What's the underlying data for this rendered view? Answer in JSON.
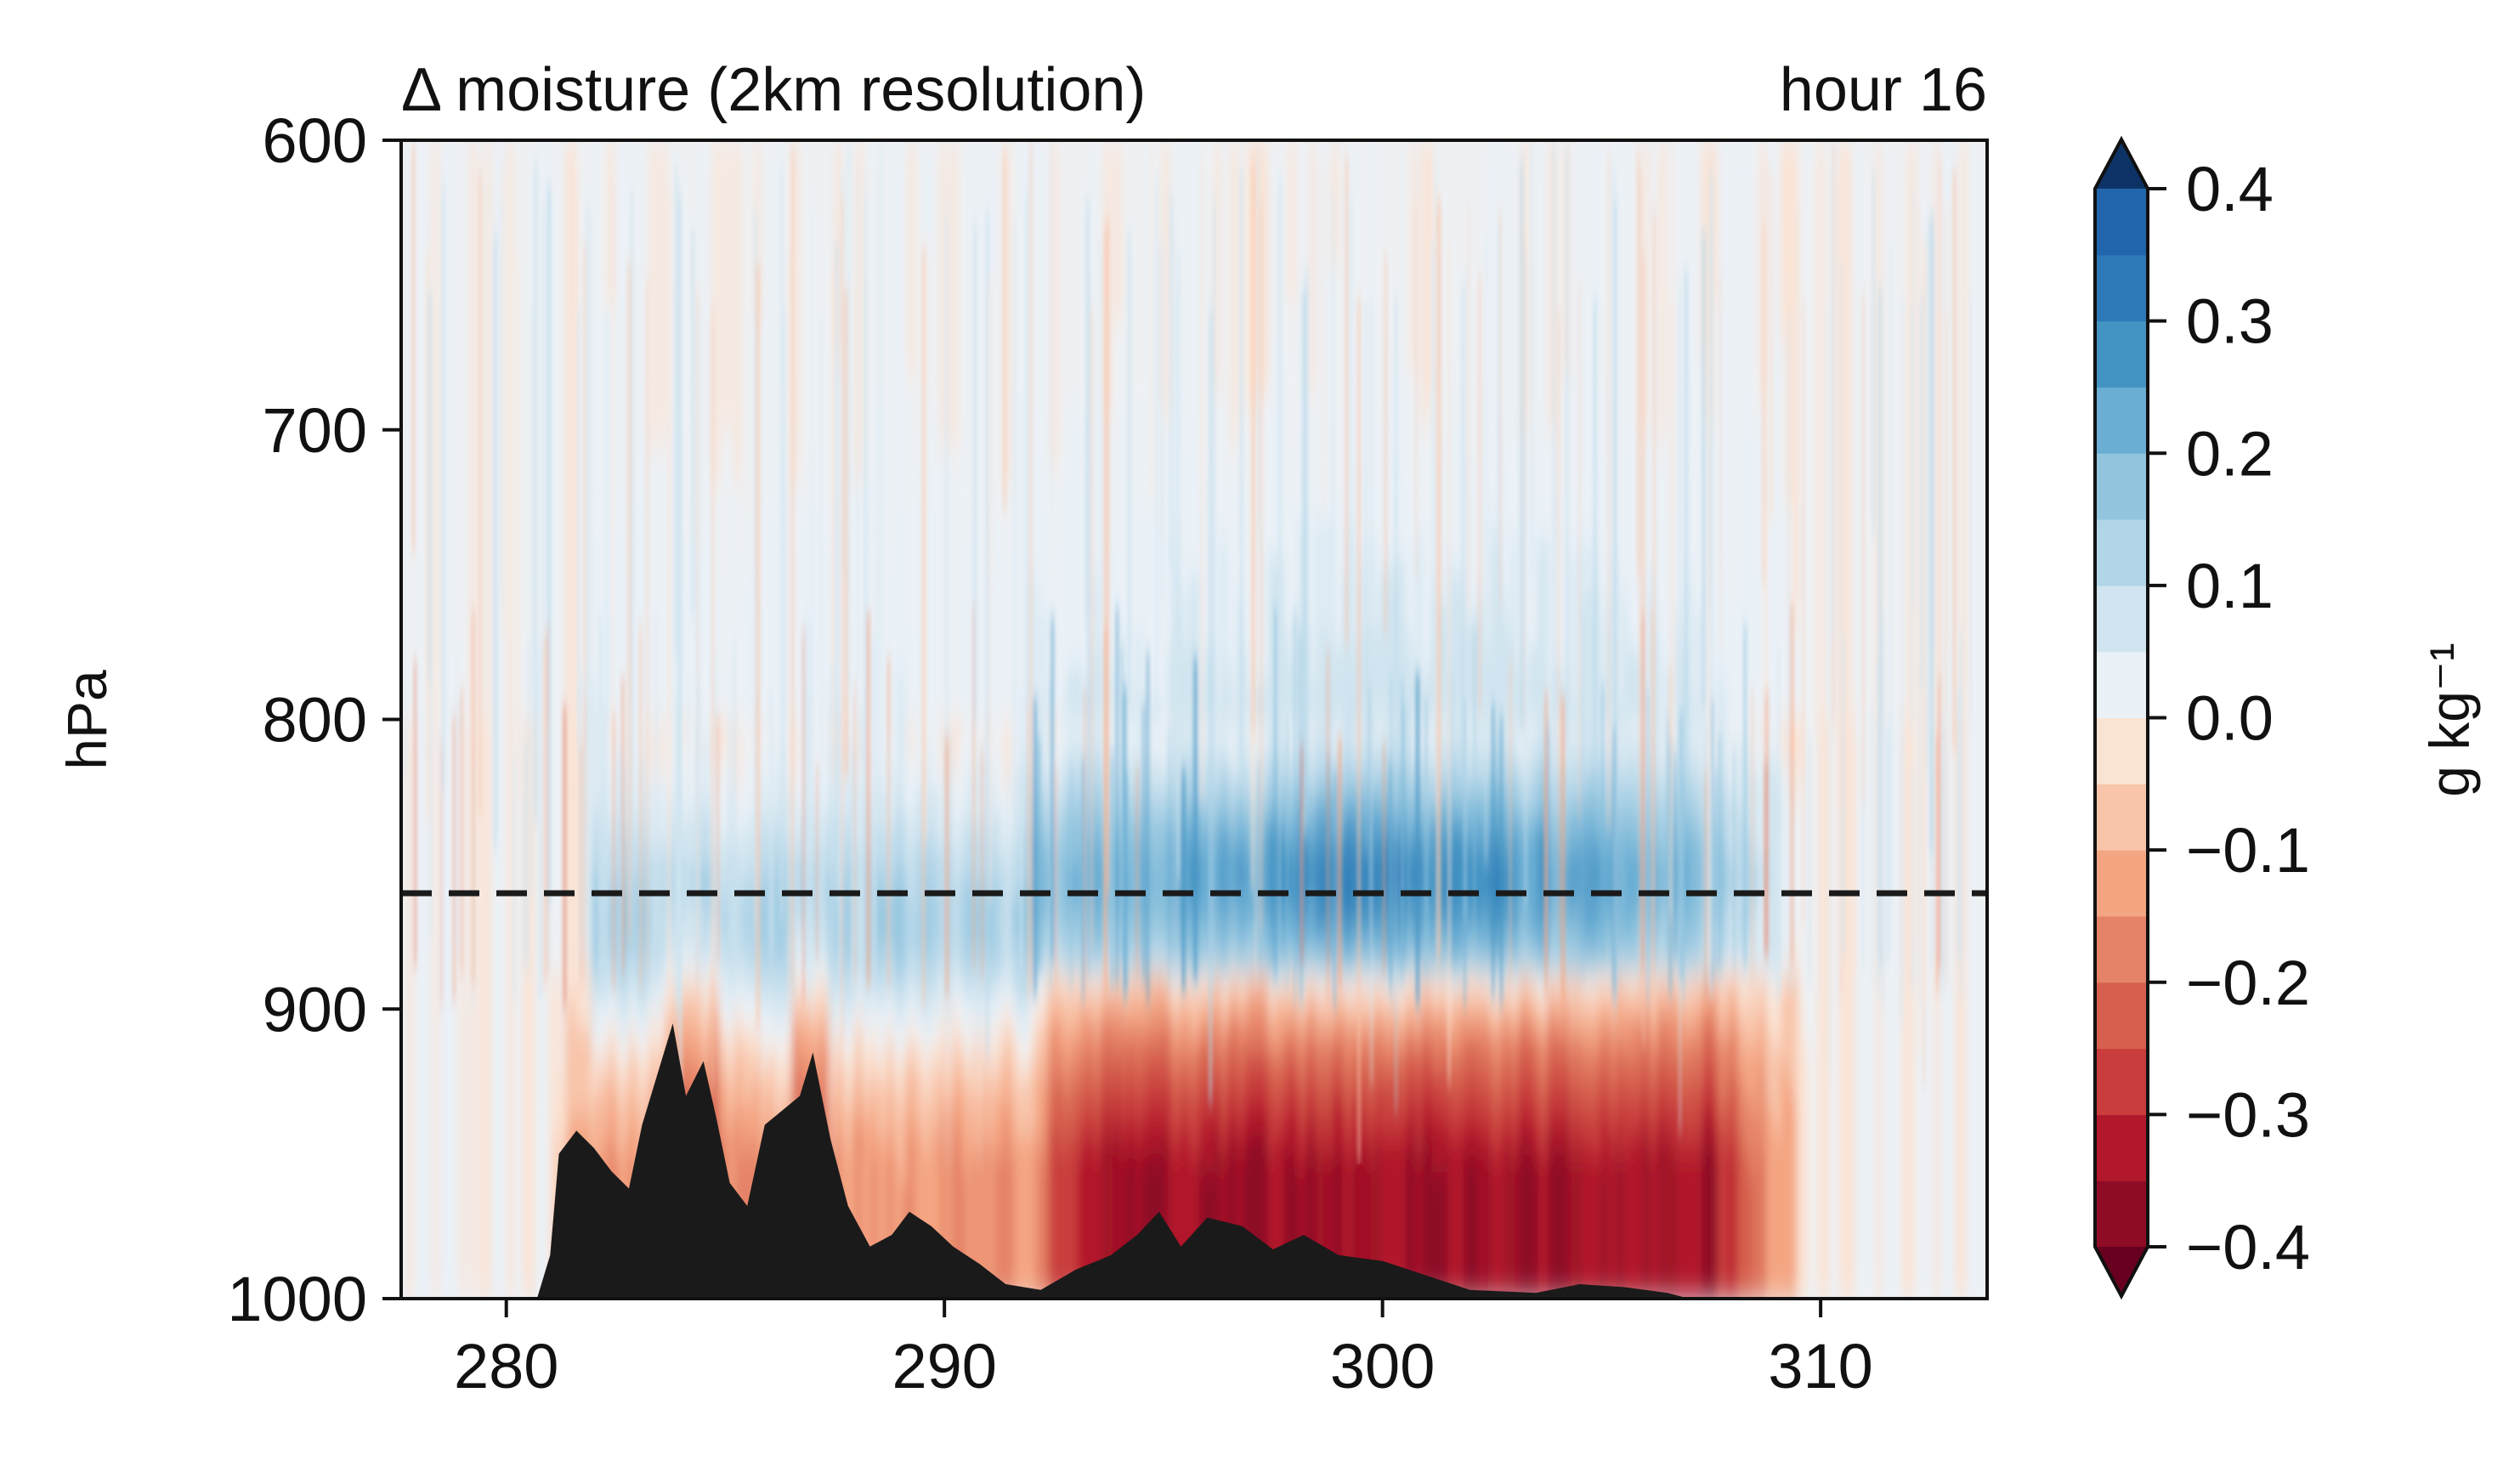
{
  "chart_data": {
    "type": "heatmap",
    "title": "Δ moisture (2km resolution)",
    "title_right": "hour 16",
    "xlabel": "",
    "ylabel": "hPa",
    "xlim": [
      277.6,
      313.8
    ],
    "ylim": [
      1000,
      600
    ],
    "x_ticks": [
      280,
      290,
      300,
      310
    ],
    "x_tick_labels": [
      "280",
      "290",
      "300",
      "310"
    ],
    "y_ticks": [
      600,
      700,
      800,
      900,
      1000
    ],
    "y_tick_labels": [
      "600",
      "700",
      "800",
      "900",
      "1000"
    ],
    "reference_line": {
      "pressure_hPa": 860,
      "style": "dashed",
      "color": "#1a1a1a"
    },
    "moisture_anomaly_field": {
      "description_units": "g kg-1",
      "regions": [
        {
          "name": "moistening-layer",
          "x_range": [
            283,
            309
          ],
          "pressure_range": [
            800,
            900
          ],
          "peak_value": 0.3,
          "peak_x": 300,
          "peak_pressure": 855
        },
        {
          "name": "drying-layer-west",
          "x_range": [
            281,
            292
          ],
          "pressure_range": [
            880,
            1000
          ],
          "value": -0.15
        },
        {
          "name": "drying-layer-east",
          "x_range": [
            292,
            309
          ],
          "pressure_range": [
            885,
            1000
          ],
          "peak_value": -0.35
        },
        {
          "name": "background",
          "value": 0.0
        }
      ]
    },
    "terrain": {
      "color": "#1a1a1a",
      "profile": [
        {
          "x": 280.7,
          "p": 1000
        },
        {
          "x": 281.0,
          "p": 985
        },
        {
          "x": 281.2,
          "p": 950
        },
        {
          "x": 281.6,
          "p": 942
        },
        {
          "x": 282.0,
          "p": 948
        },
        {
          "x": 282.4,
          "p": 956
        },
        {
          "x": 282.8,
          "p": 962
        },
        {
          "x": 283.1,
          "p": 940
        },
        {
          "x": 283.5,
          "p": 920
        },
        {
          "x": 283.8,
          "p": 905
        },
        {
          "x": 284.1,
          "p": 930
        },
        {
          "x": 284.5,
          "p": 918
        },
        {
          "x": 284.8,
          "p": 938
        },
        {
          "x": 285.1,
          "p": 960
        },
        {
          "x": 285.5,
          "p": 968
        },
        {
          "x": 285.9,
          "p": 940
        },
        {
          "x": 286.3,
          "p": 935
        },
        {
          "x": 286.7,
          "p": 930
        },
        {
          "x": 287.0,
          "p": 915
        },
        {
          "x": 287.4,
          "p": 945
        },
        {
          "x": 287.8,
          "p": 968
        },
        {
          "x": 288.3,
          "p": 982
        },
        {
          "x": 288.8,
          "p": 978
        },
        {
          "x": 289.2,
          "p": 970
        },
        {
          "x": 289.7,
          "p": 975
        },
        {
          "x": 290.2,
          "p": 982
        },
        {
          "x": 290.8,
          "p": 988
        },
        {
          "x": 291.4,
          "p": 995
        },
        {
          "x": 292.2,
          "p": 997
        },
        {
          "x": 293.0,
          "p": 990
        },
        {
          "x": 293.8,
          "p": 985
        },
        {
          "x": 294.4,
          "p": 978
        },
        {
          "x": 294.9,
          "p": 970
        },
        {
          "x": 295.4,
          "p": 982
        },
        {
          "x": 296.0,
          "p": 972
        },
        {
          "x": 296.8,
          "p": 975
        },
        {
          "x": 297.5,
          "p": 983
        },
        {
          "x": 298.2,
          "p": 978
        },
        {
          "x": 299.0,
          "p": 985
        },
        {
          "x": 300.0,
          "p": 987
        },
        {
          "x": 301.0,
          "p": 992
        },
        {
          "x": 302.0,
          "p": 997
        },
        {
          "x": 303.5,
          "p": 998
        },
        {
          "x": 304.5,
          "p": 995
        },
        {
          "x": 305.5,
          "p": 996
        },
        {
          "x": 306.5,
          "p": 998
        },
        {
          "x": 307.0,
          "p": 1000
        }
      ]
    },
    "colorbar": {
      "label": "g kg⁻¹",
      "levels": [
        -0.4,
        -0.35,
        -0.3,
        -0.25,
        -0.2,
        -0.15,
        -0.1,
        -0.05,
        0.0,
        0.05,
        0.1,
        0.15,
        0.2,
        0.25,
        0.3,
        0.35,
        0.4
      ],
      "colors": [
        "#8e0c25",
        "#b2182b",
        "#c93d3c",
        "#d6604d",
        "#e58368",
        "#f4a582",
        "#f8c5aa",
        "#fbe3d4",
        "#eaf1f7",
        "#d1e5f0",
        "#b2d5e8",
        "#92c5de",
        "#6aaed4",
        "#4393c3",
        "#2e7ab8",
        "#2166ac",
        "#154b86"
      ],
      "extend_low_color": "#67001f",
      "extend_high_color": "#0d3366",
      "ticks": [
        0.4,
        0.3,
        0.2,
        0.1,
        0.0,
        -0.1,
        -0.2,
        -0.3,
        -0.4
      ],
      "tick_labels": [
        "0.4",
        "0.3",
        "0.2",
        "0.1",
        "0.0",
        "−0.1",
        "−0.2",
        "−0.3",
        "−0.4"
      ]
    }
  }
}
